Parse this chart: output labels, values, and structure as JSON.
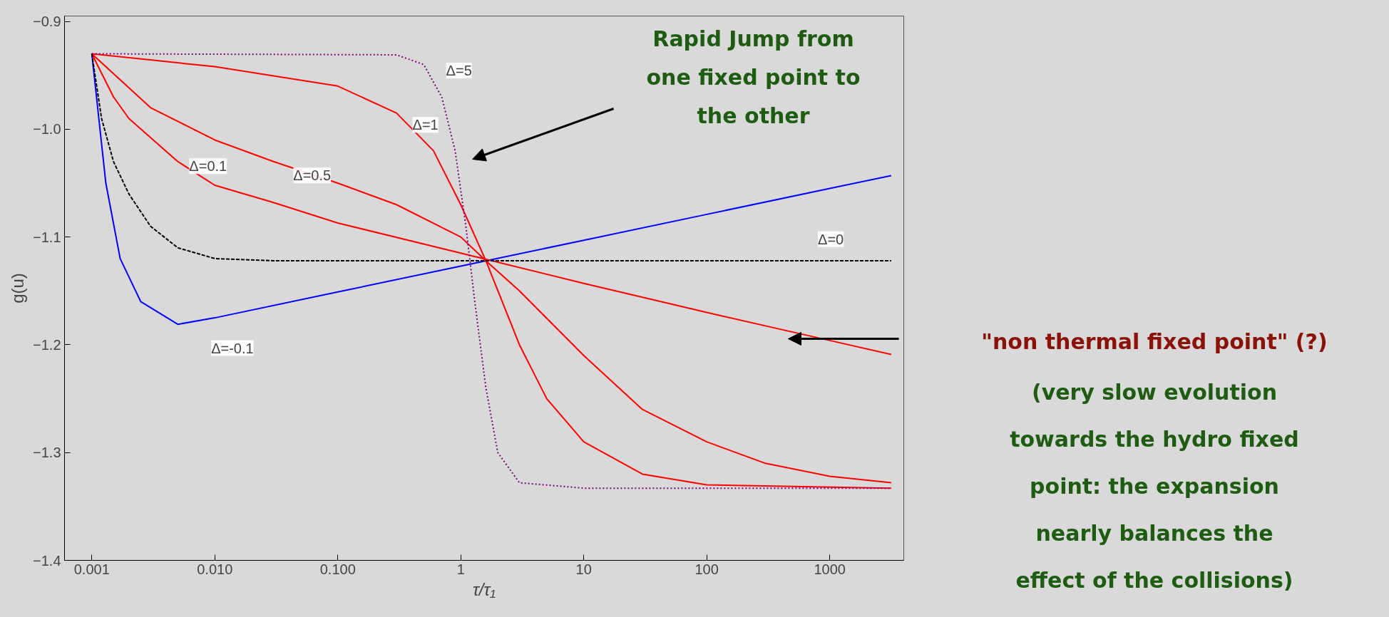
{
  "chart_data": {
    "type": "line",
    "xlabel": "τ/τ₁",
    "ylabel": "g(u)",
    "log": "x",
    "grid": false,
    "legend": false,
    "xlim": [
      0.0006,
      4000
    ],
    "ylim": [
      -1.4,
      -0.895
    ],
    "xticks": [
      0.001,
      {
        "value": 0.01,
        "label": "0.010"
      },
      {
        "value": 0.1,
        "label": "0.100"
      },
      1,
      10,
      100,
      1000
    ],
    "yticks": [
      {
        "value": -1.4,
        "label": "−1.4"
      },
      {
        "value": -1.3,
        "label": "−1.3"
      },
      {
        "value": -1.2,
        "label": "−1.2"
      },
      {
        "value": -1.1,
        "label": "−1.1"
      },
      {
        "value": -1.0,
        "label": "−1.0"
      },
      {
        "value": -0.9,
        "label": "−0.9"
      }
    ],
    "series": [
      {
        "name": "Δ=0",
        "color": "#000000",
        "line_style": "dashed",
        "x": [
          0.001,
          0.0012,
          0.0015,
          0.002,
          0.003,
          0.005,
          0.01,
          0.03,
          1,
          100,
          3160
        ],
        "values": [
          -0.93,
          -0.99,
          -1.03,
          -1.06,
          -1.09,
          -1.11,
          -1.12,
          -1.122,
          -1.122,
          -1.122,
          -1.122
        ]
      },
      {
        "name": "Δ=-0.1",
        "color": "#0000ff",
        "line_style": "solid",
        "x": [
          0.001,
          0.0013,
          0.0017,
          0.0025,
          0.005,
          0.01,
          0.1,
          1,
          10,
          100,
          1000,
          3160
        ],
        "values": [
          -0.93,
          -1.05,
          -1.12,
          -1.16,
          -1.181,
          -1.175,
          -1.151,
          -1.127,
          -1.103,
          -1.079,
          -1.055,
          -1.043
        ]
      },
      {
        "name": "Δ=0.1",
        "color": "#ff0000",
        "line_style": "solid",
        "x": [
          0.001,
          0.0015,
          0.002,
          0.005,
          0.01,
          0.03,
          0.1,
          1,
          10,
          100,
          1000,
          3160
        ],
        "values": [
          -0.93,
          -0.97,
          -0.99,
          -1.03,
          -1.052,
          -1.068,
          -1.087,
          -1.115,
          -1.143,
          -1.17,
          -1.196,
          -1.209
        ]
      },
      {
        "name": "Δ=0.5",
        "color": "#ff0000",
        "line_style": "solid",
        "x": [
          0.001,
          0.003,
          0.01,
          0.03,
          0.1,
          0.3,
          1,
          1.6,
          3,
          10,
          30,
          100,
          300,
          1000,
          3160
        ],
        "values": [
          -0.93,
          -0.98,
          -1.01,
          -1.03,
          -1.05,
          -1.07,
          -1.1,
          -1.122,
          -1.15,
          -1.21,
          -1.26,
          -1.29,
          -1.31,
          -1.322,
          -1.328
        ]
      },
      {
        "name": "Δ=1",
        "color": "#ff0000",
        "line_style": "solid",
        "x": [
          0.001,
          0.01,
          0.1,
          0.3,
          0.6,
          1,
          1.6,
          3,
          5,
          10,
          30,
          100,
          3160
        ],
        "values": [
          -0.93,
          -0.942,
          -0.96,
          -0.985,
          -1.02,
          -1.07,
          -1.122,
          -1.2,
          -1.25,
          -1.29,
          -1.32,
          -1.33,
          -1.333
        ]
      },
      {
        "name": "Δ=5",
        "color": "#800080",
        "line_style": "dotted",
        "x": [
          0.001,
          0.3,
          0.5,
          0.7,
          0.9,
          1.1,
          1.3,
          1.6,
          2,
          3,
          10,
          3160
        ],
        "values": [
          -0.93,
          -0.931,
          -0.94,
          -0.97,
          -1.02,
          -1.09,
          -1.16,
          -1.24,
          -1.3,
          -1.328,
          -1.333,
          -1.333
        ]
      }
    ],
    "annotations": [
      "Rapid Jump from\none fixed point to\nthe other",
      "\"non thermal fixed point\" (?)",
      "(very slow evolution\ntowards the hydro fixed\npoint: the expansion\nnearly balances the\neffect of the collisions)"
    ]
  }
}
